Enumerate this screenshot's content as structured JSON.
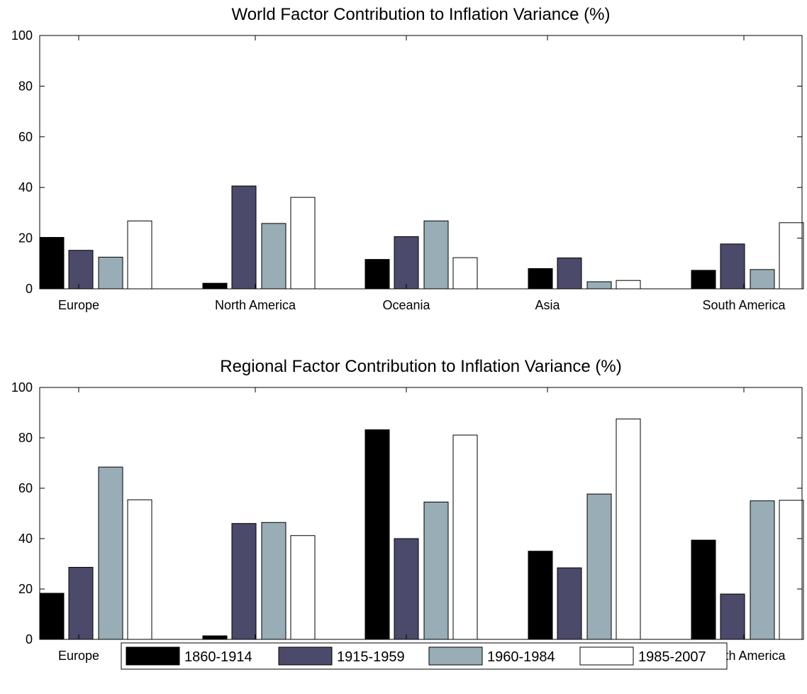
{
  "chart_data": [
    {
      "type": "bar",
      "title": "World Factor Contribution to Inflation Variance (%)",
      "xlabel": "",
      "ylabel": "",
      "ylim": [
        0,
        100
      ],
      "yticks": [
        "0",
        "20",
        "40",
        "60",
        "80",
        "100"
      ],
      "grid": false,
      "categories": [
        "Europe",
        "North America",
        "Oceania",
        "Asia",
        "South America"
      ],
      "series": [
        {
          "name": "1860-1914",
          "values": [
            20.3,
            2.2,
            11.6,
            8.0,
            7.3
          ]
        },
        {
          "name": "1915-1959",
          "values": [
            15.2,
            40.6,
            20.6,
            12.2,
            17.7
          ]
        },
        {
          "name": "1960-1984",
          "values": [
            12.5,
            25.8,
            26.8,
            2.8,
            7.6
          ]
        },
        {
          "name": "1985-2007",
          "values": [
            26.8,
            36.1,
            12.3,
            3.3,
            26.1
          ]
        }
      ]
    },
    {
      "type": "bar",
      "title": "Regional Factor Contribution to Inflation Variance (%)",
      "xlabel": "",
      "ylabel": "",
      "ylim": [
        0,
        100
      ],
      "yticks": [
        "0",
        "20",
        "40",
        "60",
        "80",
        "100"
      ],
      "grid": false,
      "categories": [
        "Europe",
        "North America",
        "Oceania",
        "Asia",
        "South America"
      ],
      "series": [
        {
          "name": "1860-1914",
          "values": [
            18.3,
            1.4,
            83.2,
            35.0,
            39.4
          ]
        },
        {
          "name": "1915-1959",
          "values": [
            28.6,
            46.0,
            40.0,
            28.4,
            18.0
          ]
        },
        {
          "name": "1960-1984",
          "values": [
            68.4,
            46.4,
            54.5,
            57.7,
            55.0
          ]
        },
        {
          "name": "1985-2007",
          "values": [
            55.4,
            41.2,
            81.1,
            87.5,
            55.2
          ]
        }
      ]
    }
  ],
  "legend": {
    "placement": "bottom",
    "entries": [
      "1860-1914",
      "1915-1959",
      "1960-1984",
      "1985-2007"
    ]
  },
  "colors": {
    "series": [
      "#000000",
      "#4b4a6a",
      "#98adb5",
      "#ffffff"
    ],
    "axis": "#000000",
    "background": "#ffffff"
  }
}
